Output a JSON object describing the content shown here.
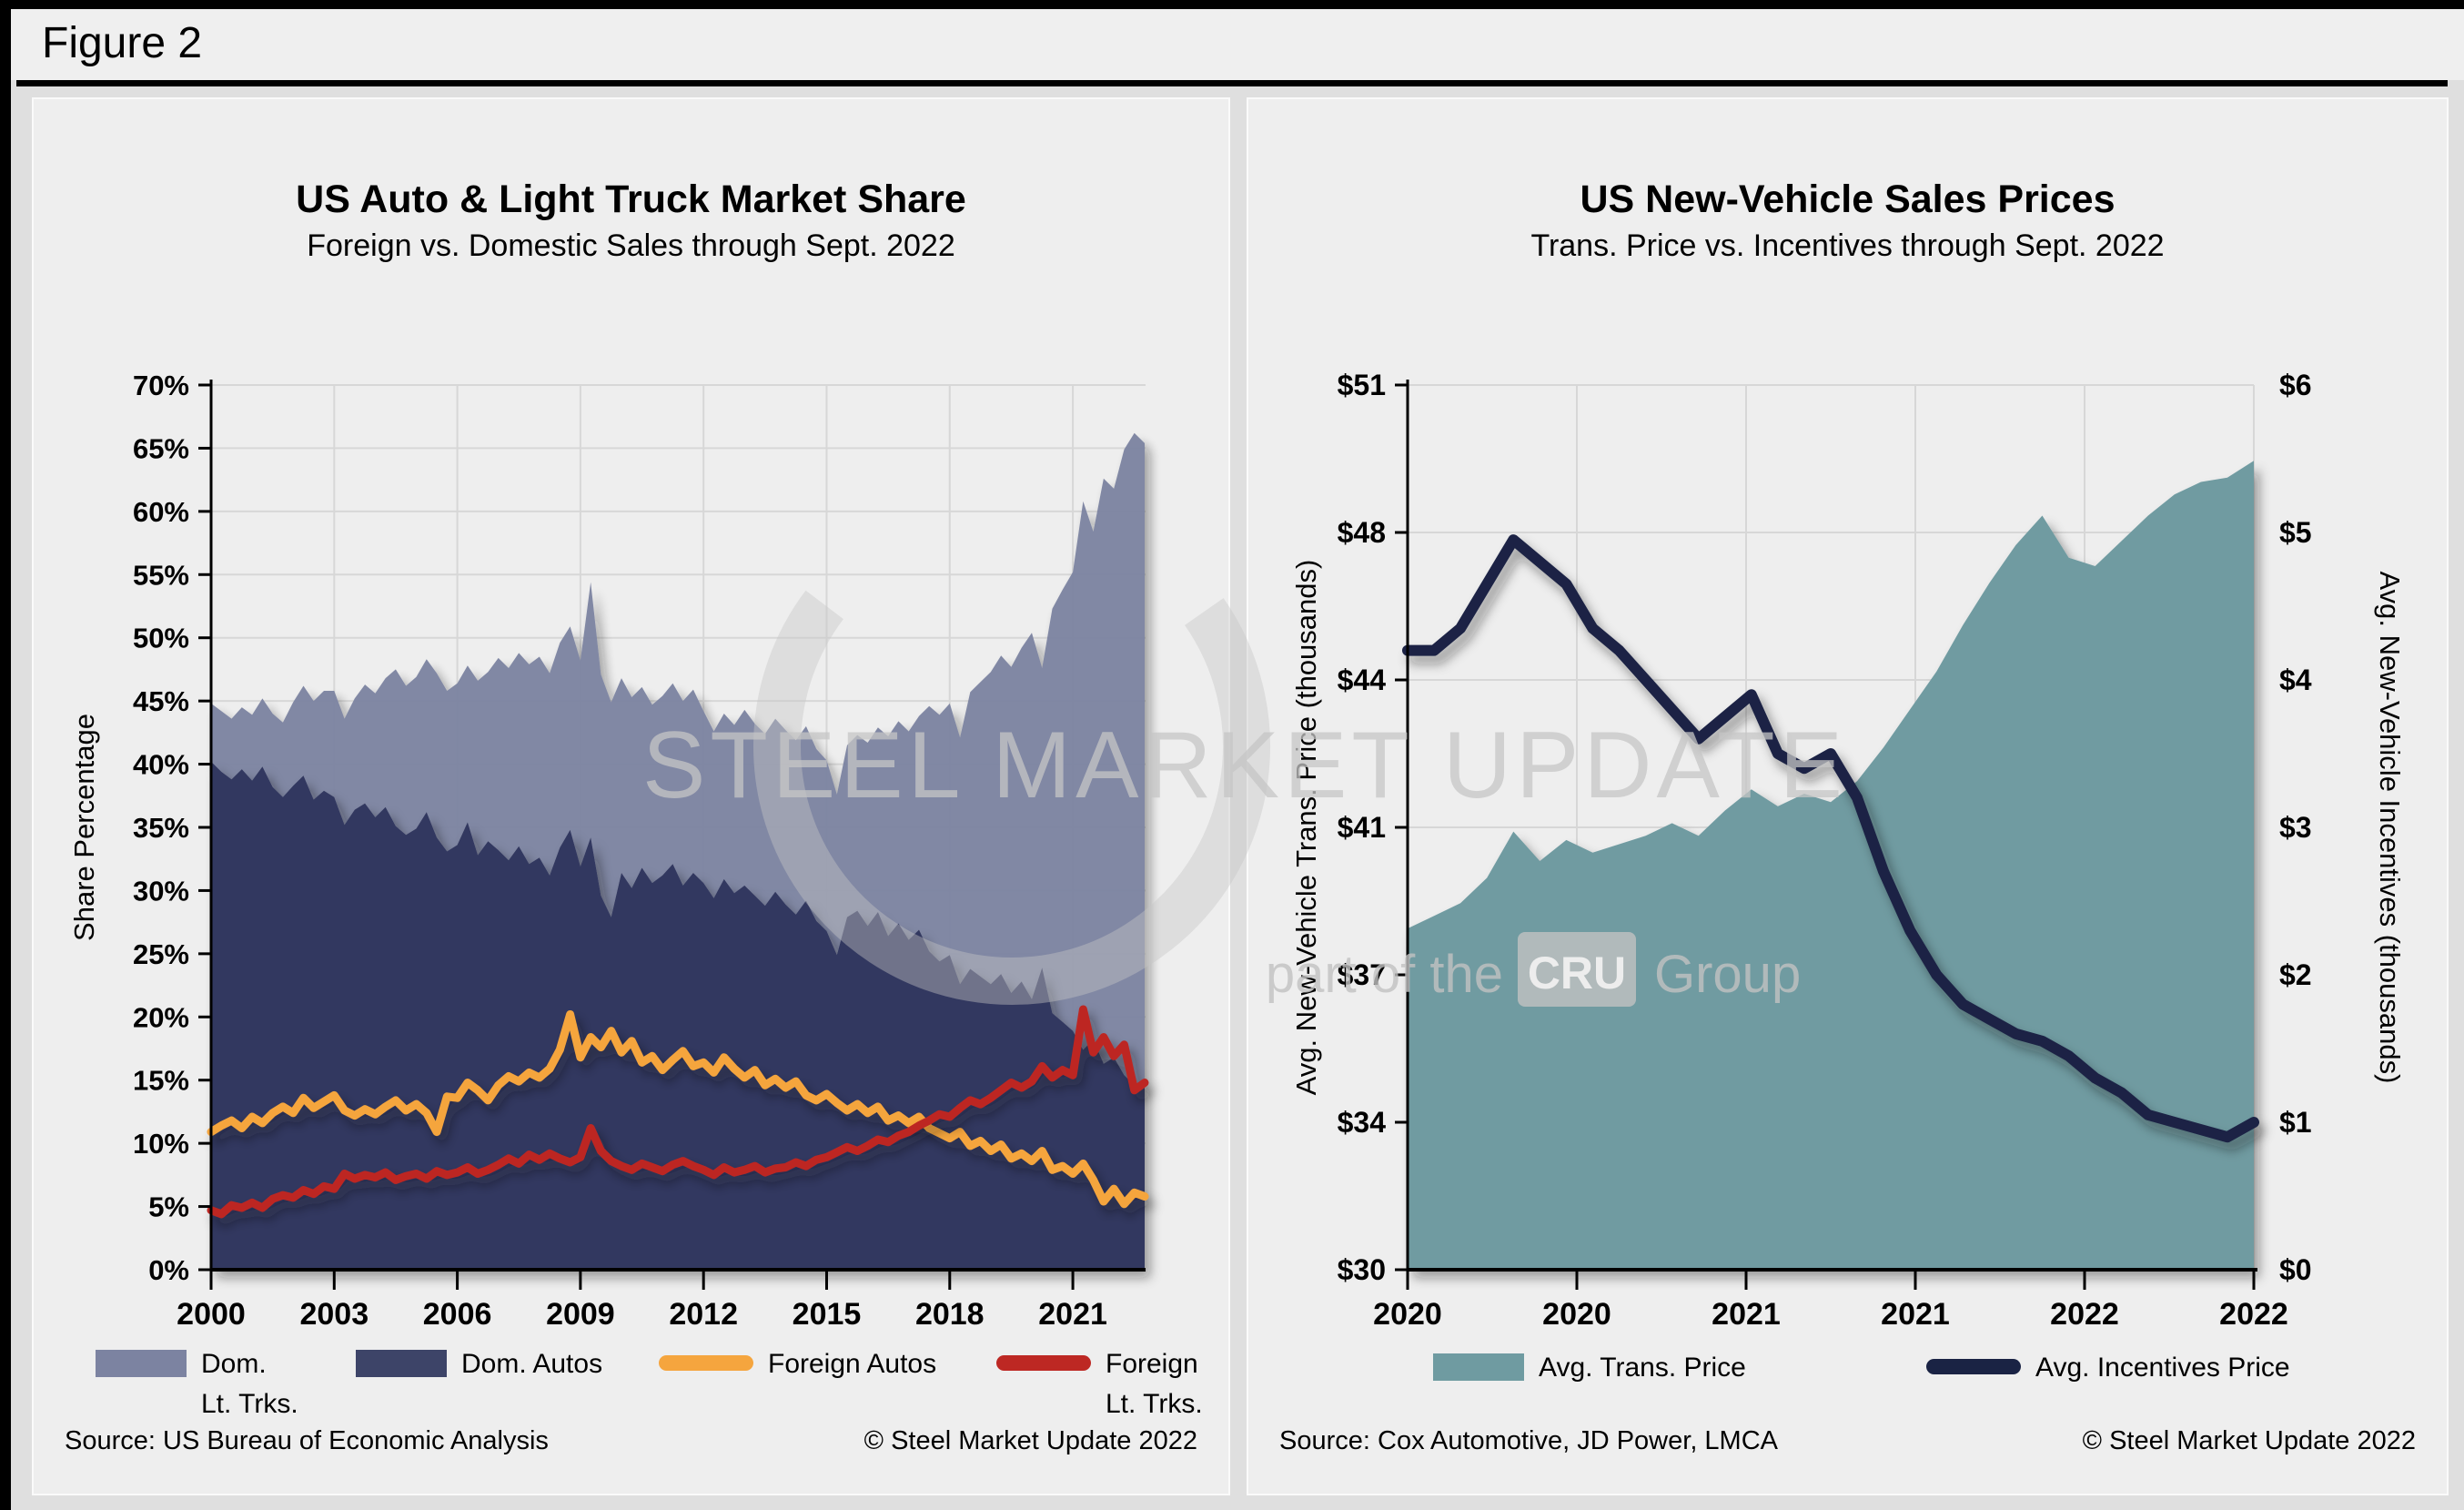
{
  "figure_label": "Figure 2",
  "colors": {
    "dom_lt_trks": "#7c83a1",
    "dom_autos": "#313860",
    "foreign_autos": "#f5a53e",
    "foreign_lt_trks": "#bd2823",
    "trans_price": "#6f9ba1",
    "incentives": "#1a2344",
    "grid": "#d7d7d7",
    "axis": "#000000"
  },
  "watermark": {
    "title": "STEEL MARKET UPDATE",
    "tagline_prefix": "part of the",
    "tagline_box": "CRU",
    "tagline_suffix": "Group"
  },
  "left": {
    "title": "US Auto & Light Truck Market Share",
    "subtitle": "Foreign vs. Domestic Sales through Sept. 2022",
    "y_axis_label": "Share Percentage",
    "y_tick_labels": [
      "70%",
      "65%",
      "60%",
      "55%",
      "50%",
      "45%",
      "40%",
      "35%",
      "30%",
      "25%",
      "20%",
      "15%",
      "10%",
      "5%",
      "0%"
    ],
    "x_tick_labels": [
      "2000",
      "2003",
      "2006",
      "2009",
      "2012",
      "2015",
      "2018",
      "2021"
    ],
    "legend": [
      {
        "line1": "Dom.",
        "line2": "Lt. Trks.",
        "type": "area",
        "color": "#7c83a1"
      },
      {
        "line1": "Dom. Autos",
        "line2": "",
        "type": "area",
        "color": "#3d4468"
      },
      {
        "line1": "Foreign Autos",
        "line2": "",
        "type": "line",
        "color": "#f5a53e"
      },
      {
        "line1": "Foreign",
        "line2": "Lt. Trks.",
        "type": "line",
        "color": "#bd2823"
      }
    ],
    "source": "Source: US Bureau of Economic Analysis",
    "copyright": "© Steel Market Update 2022"
  },
  "right": {
    "title": "US New-Vehicle Sales Prices",
    "subtitle": "Trans. Price vs. Incentives through Sept. 2022",
    "left_axis_label": "Avg. New-Vehicle Trans. Price (thousands)",
    "right_axis_label": "Avg. New-Vehicle Incentives (thousands)",
    "left_tick_labels": [
      "$51",
      "$48",
      "$44",
      "$41",
      "$37",
      "$34",
      "$30"
    ],
    "right_tick_labels": [
      "$6",
      "$5",
      "$4",
      "$3",
      "$2",
      "$1",
      "$0"
    ],
    "x_tick_labels": [
      "2020",
      "2020",
      "2021",
      "2021",
      "2022",
      "2022"
    ],
    "legend": [
      {
        "line1": "Avg. Trans. Price",
        "line2": "",
        "type": "area",
        "color": "#6f9ba1"
      },
      {
        "line1": "Avg. Incentives Price",
        "line2": "",
        "type": "line",
        "color": "#1a2344"
      }
    ],
    "source": "Source: Cox Automotive, JD Power, LMCA",
    "copyright": "© Steel Market Update 2022"
  },
  "chart_data": [
    {
      "type": "area",
      "title": "US Auto & Light Truck Market Share",
      "subtitle": "Foreign vs. Domestic Sales through Sept. 2022",
      "xlabel": "",
      "ylabel": "Share Percentage",
      "x_start": 2000.0,
      "x_step": 0.25,
      "x_end": 2022.75,
      "x_ticks": [
        2000,
        2003,
        2006,
        2009,
        2012,
        2015,
        2018,
        2021
      ],
      "ylim": [
        0,
        70
      ],
      "grid": true,
      "legend_position": "bottom",
      "series": [
        {
          "name": "Dom. Lt. Trks.",
          "render": "band-top",
          "axis": "left",
          "values": [
            44.8,
            44.2,
            43.6,
            44.5,
            43.9,
            45.2,
            44.0,
            43.3,
            44.9,
            46.2,
            45.0,
            45.8,
            45.8,
            43.6,
            45.2,
            46.3,
            45.6,
            46.8,
            47.5,
            46.2,
            46.9,
            48.3,
            47.2,
            45.8,
            46.4,
            47.8,
            46.6,
            47.3,
            48.4,
            47.6,
            48.8,
            47.9,
            48.5,
            47.2,
            49.6,
            50.9,
            48.2,
            54.4,
            47.1,
            44.9,
            46.8,
            45.3,
            46.1,
            44.7,
            45.4,
            46.4,
            45.0,
            45.9,
            44.2,
            42.6,
            44.0,
            43.1,
            44.3,
            43.2,
            42.4,
            43.6,
            42.7,
            41.9,
            43.0,
            41.2,
            40.3,
            37.6,
            41.5,
            42.3,
            41.7,
            42.9,
            42.2,
            43.4,
            42.6,
            43.8,
            44.6,
            43.9,
            44.8,
            42.1,
            45.7,
            46.5,
            47.3,
            48.6,
            47.7,
            49.2,
            50.4,
            47.6,
            52.3,
            53.8,
            55.2,
            60.8,
            58.4,
            62.6,
            61.8,
            64.9,
            66.2,
            65.4
          ]
        },
        {
          "name": "Dom. Autos",
          "render": "area",
          "axis": "left",
          "values": [
            40.2,
            39.4,
            38.8,
            39.6,
            38.7,
            39.8,
            38.2,
            37.4,
            38.3,
            39.1,
            37.2,
            37.9,
            37.4,
            35.2,
            36.4,
            36.9,
            35.8,
            36.6,
            35.1,
            34.4,
            34.9,
            36.2,
            34.2,
            33.1,
            33.6,
            35.4,
            32.8,
            33.9,
            33.2,
            32.4,
            33.5,
            32.1,
            32.6,
            31.2,
            33.4,
            34.8,
            31.9,
            34.2,
            29.6,
            27.9,
            31.4,
            30.2,
            31.8,
            30.6,
            31.2,
            32.1,
            30.4,
            31.4,
            30.6,
            29.4,
            30.9,
            29.8,
            30.4,
            29.6,
            28.8,
            29.9,
            28.9,
            28.1,
            29.2,
            27.6,
            26.8,
            24.9,
            27.9,
            28.4,
            27.2,
            28.3,
            26.4,
            27.4,
            26.1,
            26.9,
            25.2,
            24.4,
            24.9,
            22.6,
            23.8,
            23.2,
            22.6,
            23.4,
            21.9,
            22.8,
            21.4,
            23.9,
            20.3,
            19.6,
            18.9,
            17.4,
            18.2,
            16.3,
            16.8,
            15.4,
            14.6,
            15.1
          ]
        },
        {
          "name": "Foreign Autos",
          "render": "line",
          "axis": "left",
          "values": [
            10.9,
            11.4,
            11.8,
            11.2,
            12.1,
            11.6,
            12.4,
            12.9,
            12.4,
            13.6,
            12.8,
            13.3,
            13.8,
            12.6,
            12.2,
            12.7,
            12.3,
            12.9,
            13.4,
            12.6,
            13.1,
            12.4,
            10.9,
            13.7,
            13.6,
            14.8,
            14.2,
            13.4,
            14.6,
            15.3,
            14.9,
            15.6,
            15.2,
            15.9,
            17.4,
            20.2,
            16.8,
            18.4,
            17.6,
            18.9,
            17.2,
            18.1,
            16.4,
            16.9,
            15.8,
            16.6,
            17.3,
            16.1,
            16.4,
            15.6,
            16.8,
            15.9,
            15.2,
            15.8,
            14.6,
            15.1,
            14.4,
            14.9,
            13.8,
            13.4,
            13.9,
            13.2,
            12.6,
            13.1,
            12.4,
            12.9,
            11.8,
            12.2,
            11.6,
            12.1,
            11.2,
            10.8,
            10.4,
            10.9,
            9.8,
            10.2,
            9.4,
            9.9,
            8.8,
            9.2,
            8.6,
            9.4,
            7.9,
            8.2,
            7.6,
            8.4,
            7.1,
            5.4,
            6.4,
            5.2,
            6.1,
            5.8
          ]
        },
        {
          "name": "Foreign Lt. Trks.",
          "render": "line",
          "axis": "left",
          "values": [
            4.7,
            4.4,
            5.1,
            4.9,
            5.3,
            4.9,
            5.6,
            5.9,
            5.7,
            6.3,
            6.0,
            6.6,
            6.4,
            7.6,
            7.2,
            7.5,
            7.3,
            7.7,
            7.1,
            7.4,
            7.6,
            7.2,
            7.8,
            7.5,
            7.7,
            8.1,
            7.6,
            7.9,
            8.3,
            8.8,
            8.4,
            9.1,
            8.7,
            9.2,
            8.8,
            8.5,
            8.9,
            11.2,
            9.4,
            8.6,
            8.2,
            7.9,
            8.4,
            8.1,
            7.8,
            8.3,
            8.6,
            8.2,
            7.9,
            7.5,
            8.1,
            7.7,
            7.9,
            8.2,
            7.7,
            8.0,
            8.1,
            8.5,
            8.2,
            8.7,
            8.9,
            9.3,
            9.7,
            9.4,
            9.8,
            10.3,
            10.1,
            10.6,
            10.9,
            11.4,
            11.8,
            12.3,
            12.1,
            12.8,
            13.4,
            13.1,
            13.6,
            14.2,
            14.8,
            14.4,
            14.9,
            16.1,
            15.2,
            15.8,
            15.4,
            20.6,
            17.2,
            18.4,
            16.9,
            17.8,
            14.2,
            14.8
          ]
        }
      ]
    },
    {
      "type": "area",
      "title": "US New-Vehicle Sales Prices",
      "subtitle": "Trans. Price vs. Incentives through Sept. 2022",
      "xlabel": "",
      "ylabel_left": "Avg. New-Vehicle Trans. Price (thousands)",
      "ylabel_right": "Avg. New-Vehicle Incentives (thousands)",
      "x_start": 2020.0,
      "x_step": 0.0833,
      "x_end": 2022.67,
      "ylim_left": [
        30,
        51
      ],
      "ylim_right": [
        0,
        6
      ],
      "grid": true,
      "legend_position": "bottom",
      "series": [
        {
          "name": "Avg. Trans. Price",
          "render": "area",
          "axis": "left",
          "values": [
            38.1,
            38.4,
            38.7,
            39.3,
            40.4,
            39.7,
            40.2,
            39.9,
            40.1,
            40.3,
            40.6,
            40.3,
            40.9,
            41.4,
            41.0,
            41.3,
            41.1,
            41.6,
            42.4,
            43.3,
            44.2,
            45.3,
            46.3,
            47.2,
            47.9,
            46.9,
            46.7,
            47.3,
            47.9,
            48.4,
            48.7,
            48.8,
            49.2
          ]
        },
        {
          "name": "Avg. Incentives Price",
          "render": "line",
          "axis": "right",
          "values": [
            4.2,
            4.2,
            4.35,
            4.65,
            4.95,
            4.8,
            4.65,
            4.35,
            4.2,
            4.0,
            3.8,
            3.6,
            3.75,
            3.9,
            3.5,
            3.4,
            3.5,
            3.2,
            2.7,
            2.3,
            2.0,
            1.8,
            1.7,
            1.6,
            1.55,
            1.45,
            1.3,
            1.2,
            1.05,
            1.0,
            0.95,
            0.9,
            1.0
          ]
        }
      ]
    }
  ]
}
